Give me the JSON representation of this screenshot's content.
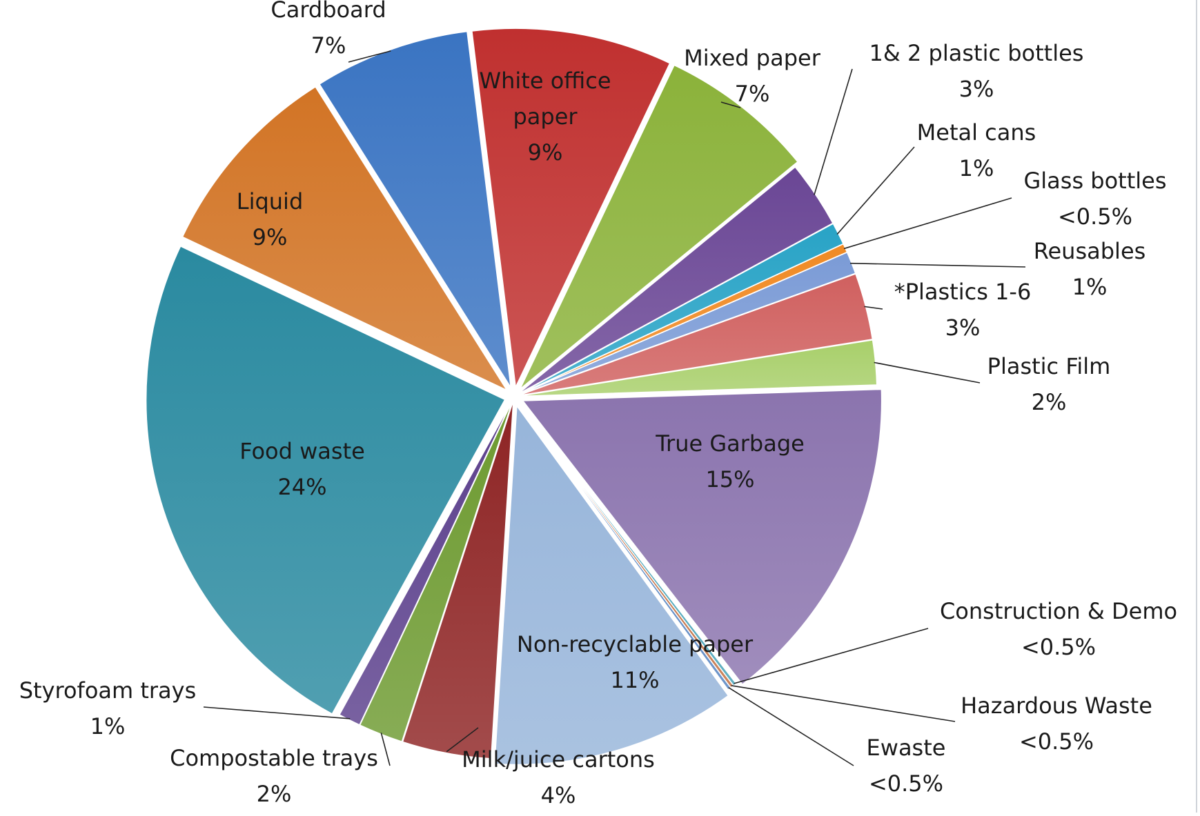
{
  "chart_data": {
    "type": "pie",
    "exploded": true,
    "slices": [
      {
        "name": "White office paper",
        "value": 9,
        "label": "9%",
        "color": "#c0302f",
        "inside": true
      },
      {
        "name": "Mixed paper",
        "value": 7,
        "label": "7%",
        "color": "#8bb23a"
      },
      {
        "name": "1& 2 plastic bottles",
        "value": 3,
        "label": "3%",
        "color": "#6a4695"
      },
      {
        "name": "Metal cans",
        "value": 1,
        "label": "1%",
        "color": "#28a3c6"
      },
      {
        "name": "Glass bottles",
        "value": 0.4,
        "label": "<0.5%",
        "color": "#f08a24"
      },
      {
        "name": "Reusables",
        "value": 1,
        "label": "1%",
        "color": "#7b9bd6"
      },
      {
        "name": "*Plastics 1-6",
        "value": 3,
        "label": "3%",
        "color": "#d0605f"
      },
      {
        "name": "Plastic Film",
        "value": 2,
        "label": "2%",
        "color": "#a8cf6a"
      },
      {
        "name": "True Garbage",
        "value": 15,
        "label": "15%",
        "color": "#8b74ae",
        "inside": true
      },
      {
        "name": "Construction & Demo",
        "value": 0.15,
        "label": "<0.5%",
        "color": "#3f9fb4"
      },
      {
        "name": "Hazardous Waste",
        "value": 0.15,
        "label": "<0.5%",
        "color": "#c06a3a"
      },
      {
        "name": "Ewaste",
        "value": 0.15,
        "label": "<0.5%",
        "color": "#4f7fbf"
      },
      {
        "name": "Non-recyclable paper",
        "value": 11,
        "label": "11%",
        "color": "#97b5da",
        "inside": true
      },
      {
        "name": "Milk/juice cartons",
        "value": 4,
        "label": "4%",
        "color": "#8e2424"
      },
      {
        "name": "Compostable trays",
        "value": 2,
        "label": "2%",
        "color": "#6d9a30"
      },
      {
        "name": "Styrofoam trays",
        "value": 1,
        "label": "1%",
        "color": "#5b3f8c"
      },
      {
        "name": "Food waste",
        "value": 24,
        "label": "24%",
        "color": "#2a8aa0",
        "inside": true
      },
      {
        "name": "Liquid",
        "value": 9,
        "label": "9%",
        "color": "#d27425",
        "inside": true
      },
      {
        "name": "Cardboard",
        "value": 7,
        "label": "7%",
        "color": "#3a74c2"
      }
    ]
  }
}
